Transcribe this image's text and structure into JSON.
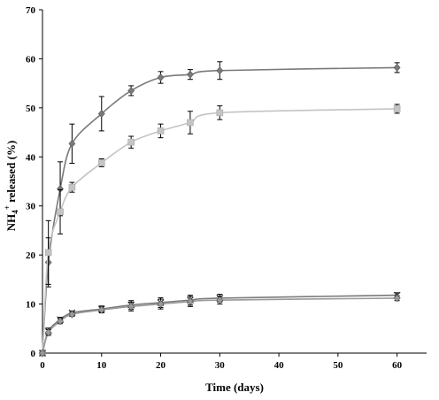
{
  "chart_data": {
    "type": "line",
    "xlabel": "Time (days)",
    "ylabel": {
      "prefix": "NH",
      "subscript": "4",
      "superscript": "+",
      "suffix": " released (%)"
    },
    "xlim": [
      0,
      65
    ],
    "ylim": [
      0,
      70
    ],
    "x_ticks": [
      0,
      10,
      20,
      30,
      40,
      50,
      60
    ],
    "y_ticks": [
      0,
      10,
      20,
      30,
      40,
      50,
      60,
      70
    ],
    "grid": false,
    "legend": "none",
    "series": [
      {
        "color": "#7a7a7a",
        "marker": "diamond",
        "x": [
          0,
          1,
          3,
          5,
          10,
          15,
          20,
          25,
          30,
          60
        ],
        "y": [
          0,
          18.5,
          33.5,
          42.7,
          48.8,
          53.5,
          56.2,
          56.8,
          57.6,
          58.2
        ],
        "err": [
          0,
          5.0,
          5.5,
          4.0,
          3.5,
          1.0,
          1.2,
          1.0,
          1.8,
          1.0
        ]
      },
      {
        "color": "#c4c4c4",
        "marker": "square",
        "x": [
          0,
          1,
          3,
          5,
          10,
          15,
          20,
          25,
          30,
          60
        ],
        "y": [
          0,
          20.5,
          28.8,
          33.8,
          38.8,
          43.0,
          45.3,
          47.0,
          49.0,
          49.8
        ],
        "err": [
          0,
          6.5,
          4.5,
          1.0,
          0.8,
          1.2,
          1.4,
          2.3,
          1.4,
          0.9
        ]
      },
      {
        "color": "#7a7a7a",
        "marker": "x",
        "x": [
          0,
          1,
          3,
          5,
          10,
          15,
          20,
          25,
          30,
          60
        ],
        "y": [
          0,
          4.5,
          6.8,
          8.2,
          9.0,
          9.8,
          10.3,
          10.8,
          11.2,
          11.8
        ],
        "err": [
          0,
          0.6,
          0.5,
          0.4,
          0.6,
          0.9,
          1.0,
          1.0,
          0.8,
          0.5
        ]
      },
      {
        "color": "#9a9a9a",
        "marker": "diamond",
        "x": [
          0,
          1,
          3,
          5,
          10,
          15,
          20,
          25,
          30,
          60
        ],
        "y": [
          0,
          4.2,
          6.5,
          7.9,
          8.8,
          9.5,
          10.0,
          10.5,
          10.8,
          11.2
        ],
        "err": [
          0,
          0.6,
          0.5,
          0.4,
          0.6,
          0.9,
          1.0,
          1.0,
          0.8,
          0.5
        ]
      }
    ]
  }
}
